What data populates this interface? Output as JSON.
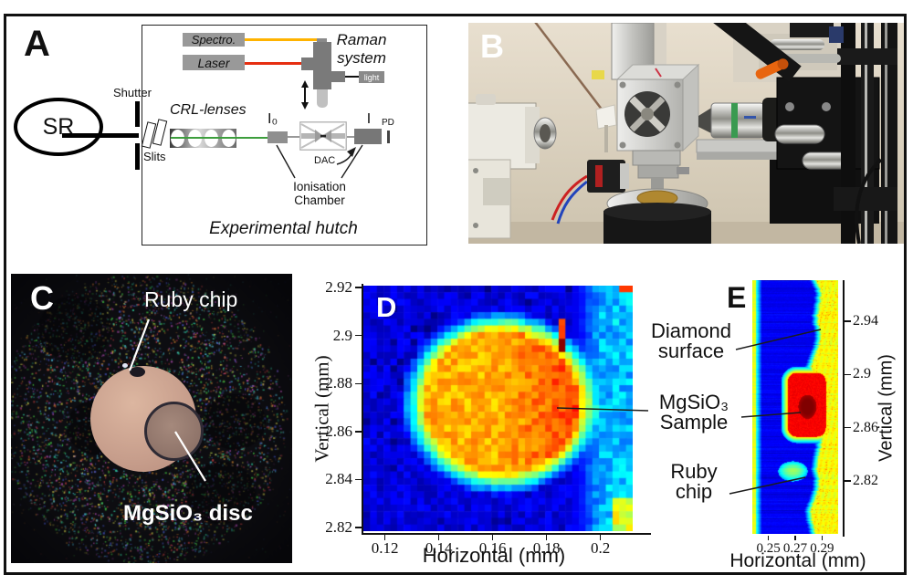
{
  "panels": {
    "a": "A",
    "b": "B",
    "c": "C",
    "d": "D",
    "e": "E"
  },
  "schematic": {
    "sr": "SR",
    "shutter": "Shutter",
    "slits": "Slits",
    "crl": "CRL-lenses",
    "spectro": "Spectro.",
    "laser": "Laser",
    "raman1": "Raman",
    "raman2": "system",
    "light": "light",
    "i0": "I₀",
    "i": "I",
    "pd": "PD",
    "dac": "DAC",
    "ion1": "Ionisation",
    "ion2": "Chamber",
    "hutch": "Experimental hutch",
    "colors": {
      "spectro_line": "#ffb300",
      "laser_line": "#e62e10",
      "beam": "#3d9e3d",
      "box_gray": "#999999"
    }
  },
  "panel_c": {
    "ruby": "Ruby chip",
    "disc": "MgSiO₃ disc"
  },
  "panel_e_annotations": {
    "diamond1": "Diamond",
    "diamond2": "surface",
    "sample1": "MgSiO₃",
    "sample2": "Sample",
    "ruby1": "Ruby",
    "ruby2": "chip"
  },
  "chart_data": [
    {
      "panel": "D",
      "type": "heatmap",
      "colormap": "jet",
      "style": "pixelated",
      "xlabel": "Horizontal (mm)",
      "ylabel": "Vertical (mm)",
      "xlim": [
        0.112,
        0.212
      ],
      "ylim": [
        2.8185,
        2.9208
      ],
      "xticks": [
        "0.12",
        "0.14",
        "0.16",
        "0.18",
        "0.2"
      ],
      "yticks": [
        "2.92",
        "2.9",
        "2.88",
        "2.86",
        "2.84",
        "2.82"
      ],
      "grid_cells": [
        40,
        37
      ],
      "background_value": 0.09,
      "features": [
        {
          "name": "MgSiO3 sample disc",
          "shape": "ellipse",
          "cx": 0.163,
          "cy": 2.872,
          "rx": 0.032,
          "ry": 0.0335,
          "value": 0.8,
          "red_bias_side": "right"
        },
        {
          "name": "bright finger top-right of disc",
          "shape": "ellipse",
          "cx": 0.1855,
          "cy": 2.8995,
          "rx": 0.0018,
          "ry": 0.0062,
          "value": 0.83
        },
        {
          "name": "dark red pixel",
          "shape": "rect",
          "cx": 0.185,
          "cy": 2.8955,
          "rx": 0.0013,
          "ry": 0.0019,
          "value": 0.99
        },
        {
          "name": "light blue right band",
          "shape": "right_band",
          "x_start": 0.196,
          "value": 0.28
        },
        {
          "name": "yellow-green bottom right corner",
          "shape": "corner_bottom_right",
          "x_start": 0.2035,
          "y_end": 2.8335,
          "value": 0.55
        },
        {
          "name": "red notch top right corner",
          "shape": "corner_top_right",
          "x_start": 0.2075,
          "y_start": 2.917,
          "value": 0.82
        }
      ]
    },
    {
      "panel": "E",
      "type": "heatmap",
      "colormap": "jet",
      "style": "smooth",
      "xlabel": "Horizontal (mm)",
      "ylabel": "Vertical (mm)",
      "xlim": [
        0.238,
        0.302
      ],
      "ylim": [
        2.78,
        2.971
      ],
      "xticks": [
        "0.25",
        "0.27",
        "0.29"
      ],
      "yticks": [
        "2.94",
        "2.9",
        "2.86",
        "2.82"
      ],
      "structure": {
        "left_yellow_band_end": 0.2405,
        "left_cyan_band_end": 0.2445,
        "blue_right_boundary": 0.2816,
        "right_yellow_start": 0.286,
        "background_blue_value": 0.115,
        "yellow_value": 0.62
      },
      "features": [
        {
          "name": "MgSiO3 sample",
          "shape": "rounded_rect",
          "x0": 0.264,
          "x1": 0.2925,
          "y0": 2.8535,
          "y1": 2.9016,
          "value": 0.88,
          "core": {
            "cx": 0.2788,
            "cy": 2.876,
            "rx": 0.0068,
            "ry": 0.009,
            "value": 1.0
          }
        },
        {
          "name": "ruby chip bump",
          "shape": "ellipse",
          "cx": 0.268,
          "cy": 2.8274,
          "rx": 0.011,
          "ry": 0.0076,
          "value": 0.52
        }
      ]
    }
  ]
}
